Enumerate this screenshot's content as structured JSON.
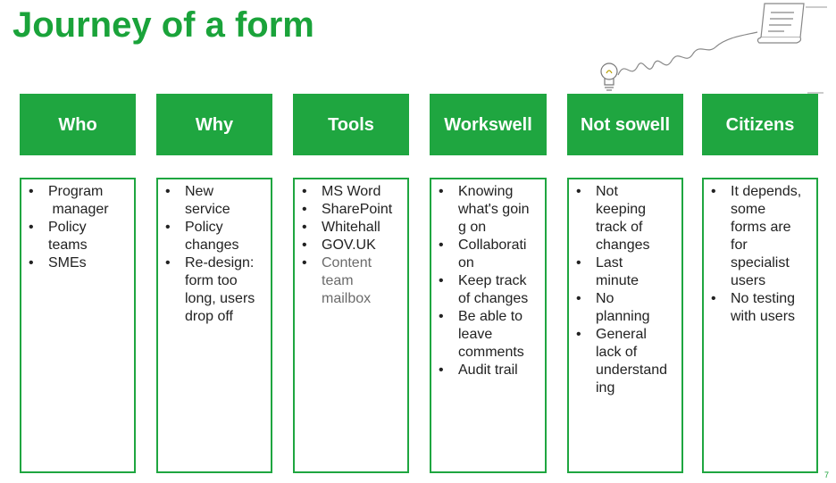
{
  "title": "Journey of a form",
  "page_number": "7",
  "colors": {
    "accent": "#1fa640",
    "title": "#1aa33a",
    "header_text": "#ffffff",
    "body_text": "#222222",
    "muted_text": "#6b6b6b"
  },
  "decoration": {
    "icons": [
      "lightbulb-icon",
      "scroll-icon"
    ]
  },
  "columns": [
    {
      "header_lines": [
        "Who"
      ],
      "items": [
        {
          "lines": [
            "Program",
            " manager"
          ]
        },
        {
          "lines": [
            "Policy",
            "teams"
          ]
        },
        {
          "lines": [
            "SMEs"
          ]
        }
      ]
    },
    {
      "header_lines": [
        "Why"
      ],
      "items": [
        {
          "lines": [
            "New",
            "service"
          ]
        },
        {
          "lines": [
            "Policy",
            "changes"
          ]
        },
        {
          "lines": [
            "Re-design:",
            "form too",
            "long, users",
            "drop off"
          ]
        }
      ]
    },
    {
      "header_lines": [
        "Tools"
      ],
      "items": [
        {
          "lines": [
            "MS Word"
          ]
        },
        {
          "lines": [
            "SharePoint"
          ]
        },
        {
          "lines": [
            "Whitehall"
          ]
        },
        {
          "lines": [
            "GOV.UK"
          ]
        },
        {
          "lines": [
            "Content",
            "team",
            "mailbox"
          ],
          "muted": true
        }
      ]
    },
    {
      "header_lines": [
        "Works",
        "well"
      ],
      "items": [
        {
          "lines": [
            "Knowing",
            "what's goin",
            "g on"
          ]
        },
        {
          "lines": [
            "Collaborati",
            "on"
          ]
        },
        {
          "lines": [
            "Keep track",
            "of changes"
          ]
        },
        {
          "lines": [
            "Be able to",
            "leave",
            "comments"
          ]
        },
        {
          "lines": [
            "Audit trail"
          ]
        }
      ]
    },
    {
      "header_lines": [
        "Not so",
        "well"
      ],
      "items": [
        {
          "lines": [
            "Not",
            "keeping",
            "track of",
            "changes"
          ]
        },
        {
          "lines": [
            "Last",
            "minute"
          ]
        },
        {
          "lines": [
            "No",
            "planning"
          ]
        },
        {
          "lines": [
            "General",
            "lack of",
            "understand",
            "ing"
          ]
        }
      ]
    },
    {
      "header_lines": [
        "Citizens"
      ],
      "items": [
        {
          "lines": [
            "It depends,",
            "some",
            "forms are",
            "for",
            "specialist",
            "users"
          ]
        },
        {
          "lines": [
            "No testing",
            "with users"
          ]
        }
      ]
    }
  ]
}
